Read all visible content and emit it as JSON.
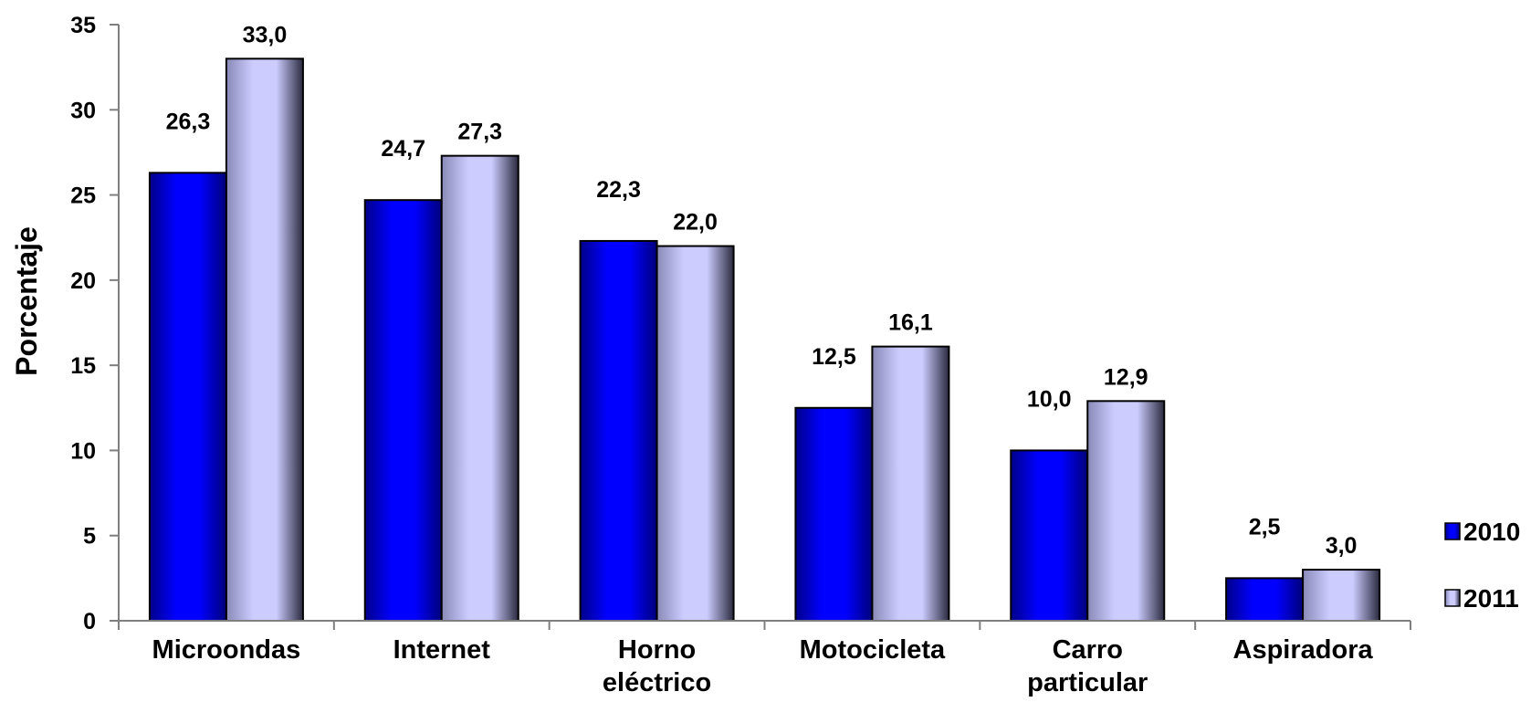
{
  "chart_data": {
    "type": "bar",
    "title": "",
    "xlabel": "",
    "ylabel": "Porcentaje",
    "ylim": [
      0,
      35
    ],
    "yticks": [
      0,
      5,
      10,
      15,
      20,
      25,
      30,
      35
    ],
    "ytick_labels": [
      "0",
      "5",
      "10",
      "15",
      "20",
      "25",
      "30",
      "35"
    ],
    "grid": false,
    "legend_position": "right",
    "categories": [
      [
        "Microondas"
      ],
      [
        "Internet"
      ],
      [
        "Horno",
        "eléctrico"
      ],
      [
        "Motocicleta"
      ],
      [
        "Carro",
        "particular"
      ],
      [
        "Aspiradora"
      ]
    ],
    "series": [
      {
        "name": "2010",
        "color": "#0000ff",
        "values": [
          26.3,
          24.7,
          22.3,
          12.5,
          10.0,
          2.5
        ],
        "labels": [
          "26,3",
          "24,7",
          "22,3",
          "12,5",
          "10,0",
          "2,5"
        ]
      },
      {
        "name": "2011",
        "color": "#ccccff",
        "values": [
          33.0,
          27.3,
          22.0,
          16.1,
          12.9,
          3.0
        ],
        "labels": [
          "33,0",
          "27,3",
          "22,0",
          "16,1",
          "12,9",
          "3,0"
        ]
      }
    ]
  }
}
